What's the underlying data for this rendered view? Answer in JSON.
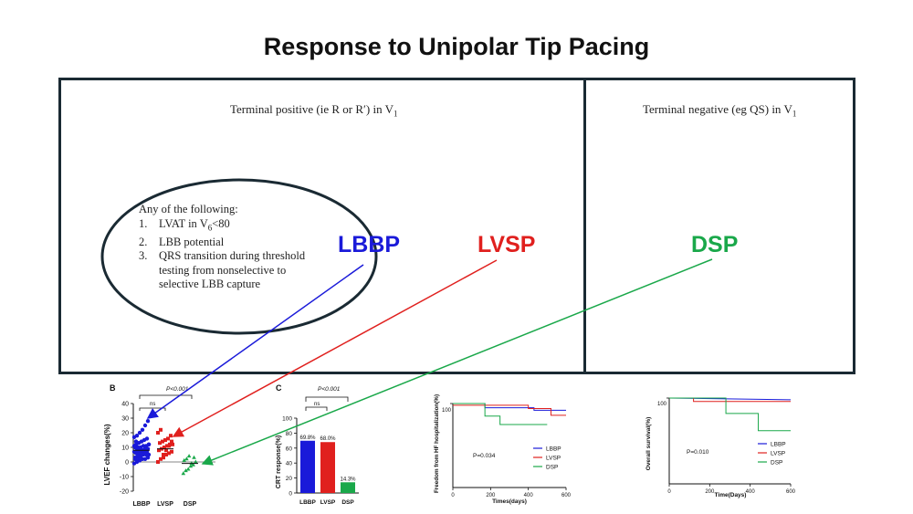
{
  "title": "Response to Unipolar Tip Pacing",
  "left_panel": {
    "header_pre": "Terminal positive (ie R or R′) in V",
    "header_sub": "1",
    "criteria_intro": "Any of the following:",
    "criteria": [
      {
        "num": "1.",
        "pre": "LVAT in V",
        "sub": "6",
        "post": "<80"
      },
      {
        "num": "2.",
        "pre": "LBB potential",
        "sub": "",
        "post": ""
      },
      {
        "num": "3.",
        "pre": "QRS transition during threshold",
        "sub": "",
        "post": ""
      },
      {
        "num": "",
        "pre": "testing from nonselective to",
        "sub": "",
        "post": ""
      },
      {
        "num": "",
        "pre": "selective LBB capture",
        "sub": "",
        "post": ""
      }
    ],
    "label_lbbp": "LBBP",
    "label_lvsp": "LVSP"
  },
  "right_panel": {
    "header_pre": "Terminal negative (eg QS) in V",
    "header_sub": "1",
    "label_dsp": "DSP"
  },
  "colors": {
    "lbbp": "#1a1ad9",
    "lvsp": "#e0201e",
    "dsp": "#1aa84a",
    "dark": "#1a2a33"
  },
  "chart_data": [
    {
      "panel": "B",
      "type": "scatter",
      "ylabel": "LVEF changes(%)",
      "ylim": [
        -20,
        40
      ],
      "yticks": [
        "40",
        "30",
        "20",
        "10",
        "0",
        "-10",
        "-20"
      ],
      "categories": [
        "LBBP",
        "LVSP",
        "DSP"
      ],
      "means": [
        8,
        9,
        -1
      ],
      "sig_p": "P<0.001",
      "sig_ns": "ns",
      "points": [
        [
          -1,
          0,
          1,
          2,
          2,
          3,
          3,
          4,
          4,
          5,
          5,
          5,
          6,
          6,
          6,
          7,
          7,
          7,
          8,
          8,
          8,
          9,
          9,
          10,
          10,
          10,
          11,
          11,
          12,
          12,
          13,
          14,
          15,
          16,
          17,
          18,
          20,
          22,
          25,
          28,
          2,
          4,
          6,
          8,
          10,
          12,
          14,
          3,
          5,
          7,
          9,
          11,
          1
        ],
        [
          0,
          2,
          3,
          5,
          6,
          7,
          8,
          9,
          10,
          11,
          12,
          12,
          13,
          14,
          15,
          16,
          18,
          20,
          22,
          5,
          8,
          11,
          14
        ],
        [
          -8,
          -6,
          -5,
          -3,
          -2,
          0,
          1,
          2,
          4,
          -1,
          3
        ]
      ]
    },
    {
      "panel": "C",
      "type": "bar",
      "ylabel": "CRT response(%)",
      "ylim": [
        0,
        100
      ],
      "yticks": [
        "100",
        "80",
        "60",
        "40",
        "20",
        "0"
      ],
      "categories": [
        "LBBP",
        "LVSP",
        "DSP"
      ],
      "values": [
        69.8,
        68.0,
        14.3
      ],
      "value_labels": [
        "69.8%",
        "68.0%",
        "14.3%"
      ],
      "sig_p": "P<0.001",
      "sig_ns": "ns"
    },
    {
      "type": "line",
      "ylabel": "Freedom from HF hospitalization(%)",
      "xlabel": "Times(days)",
      "xlim": [
        0,
        600
      ],
      "ylim": [
        0,
        100
      ],
      "xticks": [
        "0",
        "200",
        "400",
        "600"
      ],
      "ytick_top": "100",
      "pvalue": "P=0.034",
      "series": [
        {
          "name": "LBBP",
          "points": [
            [
              0,
              100
            ],
            [
              170,
              100
            ],
            [
              170,
              95
            ],
            [
              430,
              95
            ],
            [
              430,
              92
            ],
            [
              600,
              92
            ]
          ]
        },
        {
          "name": "LVSP",
          "points": [
            [
              0,
              98
            ],
            [
              400,
              98
            ],
            [
              400,
              94
            ],
            [
              520,
              94
            ],
            [
              520,
              86
            ],
            [
              600,
              86
            ]
          ]
        },
        {
          "name": "DSP",
          "points": [
            [
              0,
              100
            ],
            [
              170,
              100
            ],
            [
              170,
              85
            ],
            [
              250,
              85
            ],
            [
              250,
              75
            ],
            [
              500,
              75
            ]
          ]
        }
      ]
    },
    {
      "type": "line",
      "ylabel": "Overall survival(%)",
      "xlabel": "Time(Days)",
      "xlim": [
        0,
        600
      ],
      "ylim": [
        0,
        100
      ],
      "xticks": [
        "0",
        "200",
        "400",
        "600"
      ],
      "ytick_top": "100",
      "pvalue": "P=0.010",
      "series": [
        {
          "name": "LBBP",
          "points": [
            [
              0,
              100
            ],
            [
              600,
              98
            ]
          ]
        },
        {
          "name": "LVSP",
          "points": [
            [
              0,
              100
            ],
            [
              120,
              100
            ],
            [
              120,
              96
            ],
            [
              600,
              96
            ]
          ]
        },
        {
          "name": "DSP",
          "points": [
            [
              0,
              100
            ],
            [
              280,
              100
            ],
            [
              280,
              82
            ],
            [
              440,
              82
            ],
            [
              440,
              62
            ],
            [
              600,
              62
            ]
          ]
        }
      ]
    }
  ]
}
